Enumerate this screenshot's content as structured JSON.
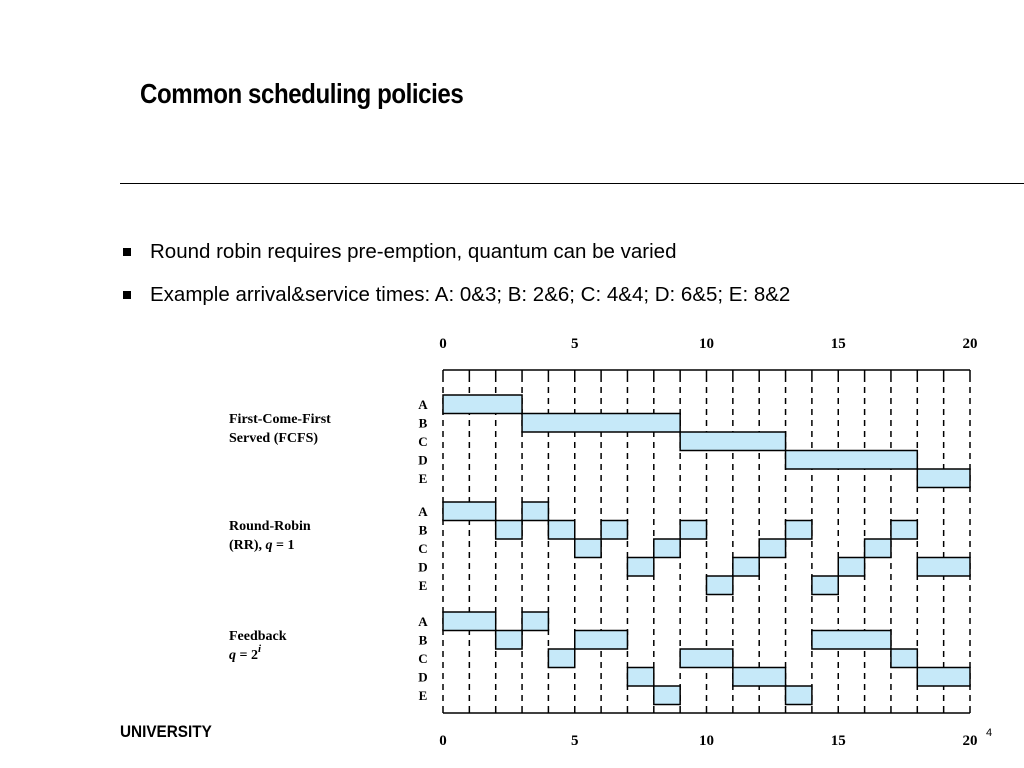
{
  "title": "Common scheduling policies",
  "bullets": [
    "Round robin requires pre-emption, quantum can be varied",
    "Example arrival&service times: A: 0&3; B: 2&6; C: 4&4; D: 6&5; E: 8&2"
  ],
  "footer": {
    "institution": "UNIVERSITY",
    "page": "4"
  },
  "colors": {
    "bar_fill": "#c6e9f9",
    "ink": "#000000"
  },
  "diagram": {
    "time_range": [
      0,
      20
    ],
    "tick_labels": [
      "0",
      "5",
      "10",
      "15",
      "20"
    ],
    "process_labels": [
      "A",
      "B",
      "C",
      "D",
      "E"
    ],
    "policies": [
      {
        "id": "fcfs",
        "label_lines": [
          "First-Come-First",
          "Served (FCFS)"
        ],
        "segments": [
          {
            "p": "A",
            "start": 0,
            "end": 3
          },
          {
            "p": "B",
            "start": 3,
            "end": 9
          },
          {
            "p": "C",
            "start": 9,
            "end": 13
          },
          {
            "p": "D",
            "start": 13,
            "end": 18
          },
          {
            "p": "E",
            "start": 18,
            "end": 20
          }
        ]
      },
      {
        "id": "rr",
        "label_lines": [
          "Round-Robin",
          "(RR), q = 1"
        ],
        "segments": [
          {
            "p": "A",
            "start": 0,
            "end": 2
          },
          {
            "p": "B",
            "start": 2,
            "end": 3
          },
          {
            "p": "A",
            "start": 3,
            "end": 4
          },
          {
            "p": "B",
            "start": 4,
            "end": 5
          },
          {
            "p": "C",
            "start": 5,
            "end": 6
          },
          {
            "p": "B",
            "start": 6,
            "end": 7
          },
          {
            "p": "D",
            "start": 7,
            "end": 8
          },
          {
            "p": "C",
            "start": 8,
            "end": 9
          },
          {
            "p": "B",
            "start": 9,
            "end": 10
          },
          {
            "p": "E",
            "start": 10,
            "end": 11
          },
          {
            "p": "D",
            "start": 11,
            "end": 12
          },
          {
            "p": "C",
            "start": 12,
            "end": 13
          },
          {
            "p": "B",
            "start": 13,
            "end": 14
          },
          {
            "p": "E",
            "start": 14,
            "end": 15
          },
          {
            "p": "D",
            "start": 15,
            "end": 16
          },
          {
            "p": "C",
            "start": 16,
            "end": 17
          },
          {
            "p": "B",
            "start": 17,
            "end": 18
          },
          {
            "p": "D",
            "start": 18,
            "end": 20
          }
        ]
      },
      {
        "id": "feedback",
        "label_lines": [
          "Feedback",
          "q = 2i"
        ],
        "segments": [
          {
            "p": "A",
            "start": 0,
            "end": 2
          },
          {
            "p": "B",
            "start": 2,
            "end": 3
          },
          {
            "p": "A",
            "start": 3,
            "end": 4
          },
          {
            "p": "C",
            "start": 4,
            "end": 5
          },
          {
            "p": "B",
            "start": 5,
            "end": 7
          },
          {
            "p": "D",
            "start": 7,
            "end": 8
          },
          {
            "p": "E",
            "start": 8,
            "end": 9
          },
          {
            "p": "C",
            "start": 9,
            "end": 11
          },
          {
            "p": "D",
            "start": 11,
            "end": 13
          },
          {
            "p": "E",
            "start": 13,
            "end": 14
          },
          {
            "p": "B",
            "start": 14,
            "end": 17
          },
          {
            "p": "C",
            "start": 17,
            "end": 18
          },
          {
            "p": "D",
            "start": 18,
            "end": 20
          }
        ]
      }
    ]
  }
}
